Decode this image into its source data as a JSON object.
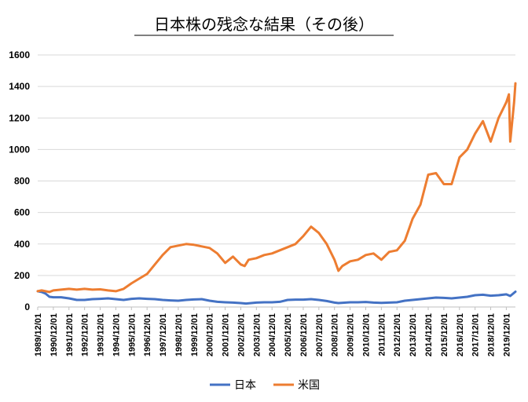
{
  "chart_data": {
    "type": "line",
    "title": "日本株の残念な結果（その後）",
    "ylim": [
      0,
      1600
    ],
    "y_ticks": [
      "0",
      "200",
      "400",
      "600",
      "800",
      "1000",
      "1200",
      "1400",
      "1600"
    ],
    "x_tick_labels": [
      "1989/12/01",
      "1990/12/01",
      "1991/12/01",
      "1992/12/01",
      "1993/12/01",
      "1994/12/01",
      "1995/12/01",
      "1996/12/01",
      "1997/12/01",
      "1998/12/01",
      "1999/12/01",
      "2000/12/01",
      "2001/12/01",
      "2002/12/01",
      "2003/12/01",
      "2004/12/01",
      "2005/12/01",
      "2006/12/01",
      "2007/12/01",
      "2008/12/01",
      "2009/12/01",
      "2010/12/01",
      "2011/12/01",
      "2012/12/01",
      "2013/12/01",
      "2014/12/01",
      "2015/12/01",
      "2016/12/01",
      "2017/12/01",
      "2018/12/01",
      "2019/12/01"
    ],
    "x_range": [
      "1989/12/01",
      "2020/07/01"
    ],
    "grid": "horizontal",
    "legend_position": "bottom",
    "series": [
      {
        "name": "日本",
        "color": "#4472C4",
        "x": [
          "1989/12/01",
          "1990/03/01",
          "1990/06/01",
          "1990/09/01",
          "1990/12/01",
          "1991/06/01",
          "1991/12/01",
          "1992/06/01",
          "1992/12/01",
          "1993/06/01",
          "1993/12/01",
          "1994/06/01",
          "1994/12/01",
          "1995/06/01",
          "1995/12/01",
          "1996/06/01",
          "1996/12/01",
          "1997/06/01",
          "1997/12/01",
          "1998/06/01",
          "1998/12/01",
          "1999/06/01",
          "1999/12/01",
          "2000/06/01",
          "2000/12/01",
          "2001/06/01",
          "2001/12/01",
          "2002/06/01",
          "2002/12/01",
          "2003/04/01",
          "2003/12/01",
          "2004/06/01",
          "2004/12/01",
          "2005/06/01",
          "2005/12/01",
          "2006/06/01",
          "2006/12/01",
          "2007/06/01",
          "2007/12/01",
          "2008/06/01",
          "2008/12/01",
          "2009/03/01",
          "2009/12/01",
          "2010/06/01",
          "2010/12/01",
          "2011/06/01",
          "2011/12/01",
          "2012/06/01",
          "2012/12/01",
          "2013/06/01",
          "2013/12/01",
          "2014/06/01",
          "2014/12/01",
          "2015/06/01",
          "2015/12/01",
          "2016/06/01",
          "2016/12/01",
          "2017/06/01",
          "2017/12/01",
          "2018/06/01",
          "2018/12/01",
          "2019/06/01",
          "2019/12/01",
          "2020/03/01",
          "2020/07/01"
        ],
        "values": [
          100,
          95,
          85,
          65,
          62,
          62,
          55,
          45,
          45,
          50,
          52,
          55,
          50,
          45,
          52,
          55,
          52,
          50,
          45,
          42,
          40,
          45,
          48,
          50,
          40,
          33,
          30,
          28,
          25,
          22,
          28,
          30,
          30,
          33,
          45,
          47,
          47,
          50,
          45,
          38,
          28,
          25,
          30,
          30,
          32,
          28,
          26,
          28,
          30,
          40,
          45,
          50,
          55,
          60,
          58,
          55,
          60,
          65,
          75,
          78,
          72,
          75,
          80,
          70,
          97
        ]
      },
      {
        "name": "米国",
        "color": "#ED7D31",
        "x": [
          "1989/12/01",
          "1990/03/01",
          "1990/06/01",
          "1990/09/01",
          "1990/12/01",
          "1991/06/01",
          "1991/12/01",
          "1992/06/01",
          "1992/12/01",
          "1993/06/01",
          "1993/12/01",
          "1994/06/01",
          "1994/12/01",
          "1995/06/01",
          "1995/12/01",
          "1996/06/01",
          "1996/12/01",
          "1997/06/01",
          "1997/12/01",
          "1998/06/01",
          "1998/12/01",
          "1999/06/01",
          "1999/12/01",
          "2000/06/01",
          "2000/12/01",
          "2001/06/01",
          "2001/12/01",
          "2002/06/01",
          "2002/12/01",
          "2003/03/01",
          "2003/06/01",
          "2003/12/01",
          "2004/06/01",
          "2004/12/01",
          "2005/06/01",
          "2005/12/01",
          "2006/06/01",
          "2006/12/01",
          "2007/06/01",
          "2007/12/01",
          "2008/06/01",
          "2008/12/01",
          "2009/03/01",
          "2009/06/01",
          "2009/12/01",
          "2010/06/01",
          "2010/12/01",
          "2011/06/01",
          "2011/12/01",
          "2012/06/01",
          "2012/12/01",
          "2013/06/01",
          "2013/12/01",
          "2014/06/01",
          "2014/12/01",
          "2015/06/01",
          "2015/12/01",
          "2016/06/01",
          "2016/12/01",
          "2017/06/01",
          "2017/12/01",
          "2018/06/01",
          "2018/12/01",
          "2019/06/01",
          "2019/12/01",
          "2020/02/01",
          "2020/03/01",
          "2020/06/01",
          "2020/07/01"
        ],
        "values": [
          100,
          105,
          100,
          95,
          105,
          110,
          115,
          110,
          115,
          110,
          112,
          105,
          100,
          115,
          150,
          180,
          210,
          270,
          330,
          380,
          390,
          400,
          395,
          385,
          375,
          340,
          280,
          320,
          270,
          260,
          300,
          310,
          330,
          340,
          360,
          380,
          400,
          450,
          510,
          470,
          400,
          300,
          230,
          260,
          290,
          300,
          330,
          340,
          300,
          350,
          360,
          420,
          560,
          650,
          840,
          850,
          780,
          780,
          950,
          1000,
          1100,
          1180,
          1050,
          1200,
          1300,
          1350,
          1050,
          1300,
          1420
        ]
      }
    ]
  }
}
